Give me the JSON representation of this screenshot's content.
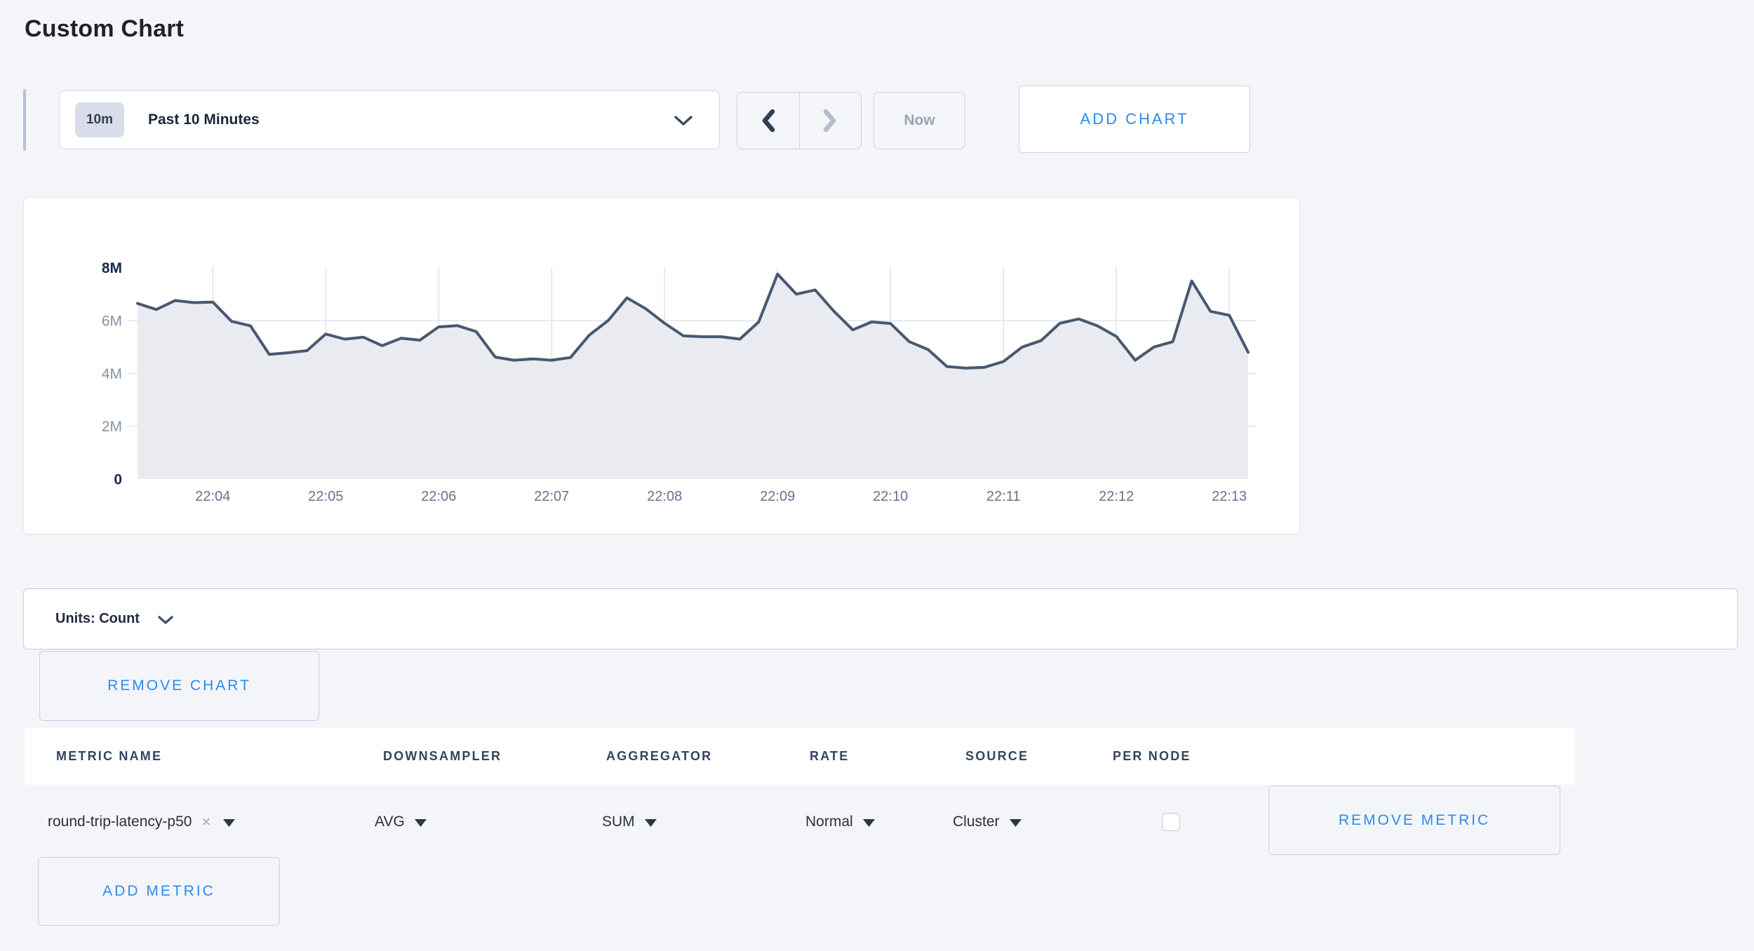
{
  "page": {
    "title": "Custom Chart"
  },
  "toolbar": {
    "time_badge": "10m",
    "time_label": "Past 10 Minutes",
    "now_label": "Now",
    "add_chart_label": "ADD CHART"
  },
  "chart_data": {
    "type": "area",
    "title": "",
    "xlabel": "",
    "ylabel": "count",
    "unit_suffix": "M",
    "x": [
      "22:03:20",
      "22:03:30",
      "22:03:40",
      "22:03:50",
      "22:04:00",
      "22:04:10",
      "22:04:20",
      "22:04:30",
      "22:04:40",
      "22:04:50",
      "22:05:00",
      "22:05:10",
      "22:05:20",
      "22:05:30",
      "22:05:40",
      "22:05:50",
      "22:06:00",
      "22:06:10",
      "22:06:20",
      "22:06:30",
      "22:06:40",
      "22:06:50",
      "22:07:00",
      "22:07:10",
      "22:07:20",
      "22:07:30",
      "22:07:40",
      "22:07:50",
      "22:08:00",
      "22:08:10",
      "22:08:20",
      "22:08:30",
      "22:08:40",
      "22:08:50",
      "22:09:00",
      "22:09:10",
      "22:09:20",
      "22:09:30",
      "22:09:40",
      "22:09:50",
      "22:10:00",
      "22:10:10",
      "22:10:20",
      "22:10:30",
      "22:10:40",
      "22:10:50",
      "22:11:00",
      "22:11:10",
      "22:11:20",
      "22:11:30",
      "22:11:40",
      "22:11:50",
      "22:12:00",
      "22:12:10",
      "22:12:20",
      "22:12:30",
      "22:12:40",
      "22:12:50",
      "22:13:00",
      "22:13:10"
    ],
    "values_millions": [
      6.65,
      6.42,
      6.76,
      6.68,
      6.7,
      5.97,
      5.8,
      4.72,
      4.78,
      4.86,
      5.49,
      5.3,
      5.37,
      5.05,
      5.33,
      5.26,
      5.76,
      5.81,
      5.58,
      4.62,
      4.5,
      4.55,
      4.5,
      4.6,
      5.45,
      6.0,
      6.86,
      6.45,
      5.9,
      5.42,
      5.39,
      5.39,
      5.3,
      5.95,
      7.76,
      7.0,
      7.16,
      6.35,
      5.65,
      5.95,
      5.89,
      5.2,
      4.9,
      4.26,
      4.2,
      4.23,
      4.45,
      5.0,
      5.24,
      5.9,
      6.06,
      5.8,
      5.4,
      4.5,
      5.0,
      5.2,
      7.5,
      6.35,
      6.2,
      4.8
    ],
    "ylim_millions": [
      0,
      8
    ],
    "yticks": [
      {
        "value": 0,
        "label": "0",
        "strong": true
      },
      {
        "value": 2,
        "label": "2M",
        "strong": false
      },
      {
        "value": 4,
        "label": "4M",
        "strong": false
      },
      {
        "value": 6,
        "label": "6M",
        "strong": false
      },
      {
        "value": 8,
        "label": "8M",
        "strong": true
      }
    ],
    "xticks": [
      "22:04",
      "22:05",
      "22:06",
      "22:07",
      "22:08",
      "22:09",
      "22:10",
      "22:11",
      "22:12",
      "22:13"
    ],
    "grid": true,
    "legend": "none",
    "line_color": "#48586f",
    "fill_color": "#e9ebf1",
    "grid_color": "#e6e9f1"
  },
  "units_bar": {
    "label": "Units: Count"
  },
  "chart_actions": {
    "remove_chart_label": "REMOVE CHART"
  },
  "metrics_table": {
    "headers": [
      "METRIC NAME",
      "DOWNSAMPLER",
      "AGGREGATOR",
      "RATE",
      "SOURCE",
      "PER NODE"
    ],
    "rows": [
      {
        "metric_name": "round-trip-latency-p50",
        "remove_tag_glyph": "×",
        "downsampler": "AVG",
        "aggregator": "SUM",
        "rate": "Normal",
        "source": "Cluster",
        "per_node_checked": false,
        "remove_label": "REMOVE METRIC"
      }
    ]
  },
  "add_metric": {
    "label": "ADD METRIC"
  }
}
